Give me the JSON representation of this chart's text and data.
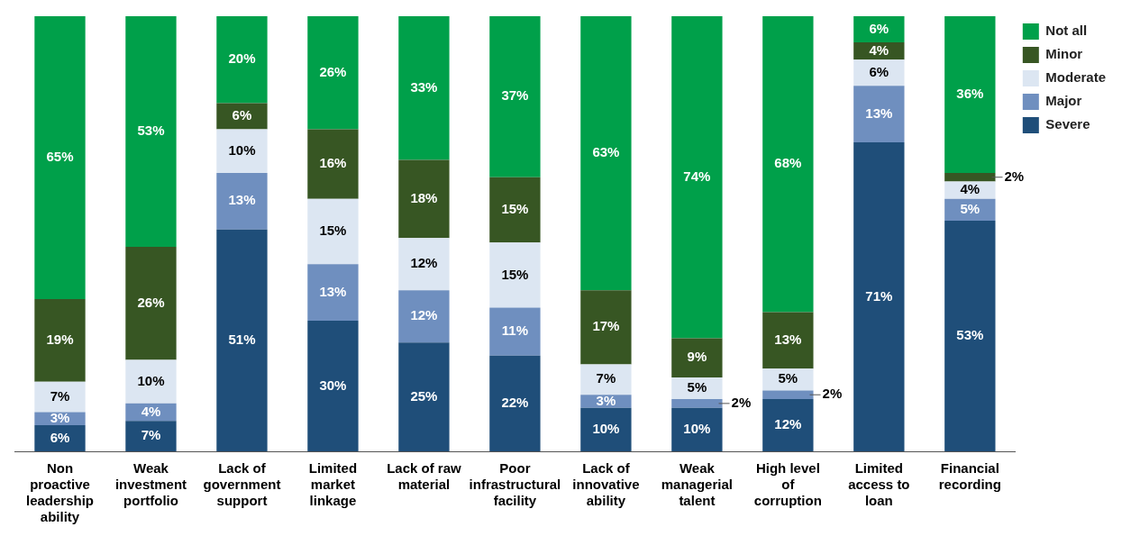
{
  "chart_data": {
    "type": "bar",
    "stacked": true,
    "legend": "top right",
    "grid": false,
    "categories": [
      "Non proactive leadership ability",
      "Weak investment portfolio",
      "Lack of government support",
      "Limited market linkage",
      "Lack of raw material",
      "Poor infrastructural facility",
      "Lack of innovative ability",
      "Weak managerial talent",
      "High level of corruption",
      "Limited access to loan",
      "Financial recording"
    ],
    "series": [
      {
        "name": "Severe",
        "color": "#1f4e79",
        "values": [
          6,
          7,
          51,
          30,
          25,
          22,
          10,
          10,
          12,
          71,
          53
        ],
        "value_labels": [
          "6%",
          "7%",
          "51%",
          "30%",
          "25%",
          "22%",
          "10%",
          "10%",
          "12%",
          "71%",
          "53%"
        ]
      },
      {
        "name": "Major",
        "color": "#6f8fbf",
        "values": [
          3,
          4,
          13,
          13,
          12,
          11,
          3,
          2,
          2,
          13,
          5
        ],
        "value_labels": [
          "3%",
          "4%",
          "13%",
          "13%",
          "12%",
          "11%",
          "3%",
          "2%",
          "2%",
          "13%",
          "5%"
        ]
      },
      {
        "name": "Moderate",
        "color": "#dce6f2",
        "values": [
          7,
          10,
          10,
          15,
          12,
          15,
          7,
          5,
          5,
          6,
          4
        ],
        "value_labels": [
          "7%",
          "10%",
          "10%",
          "15%",
          "12%",
          "15%",
          "7%",
          "5%",
          "5%",
          "6%",
          "4%"
        ]
      },
      {
        "name": "Minor",
        "color": "#375623",
        "values": [
          19,
          26,
          6,
          16,
          18,
          15,
          17,
          9,
          13,
          4,
          2
        ],
        "value_labels": [
          "19%",
          "26%",
          "6%",
          "16%",
          "18%",
          "15%",
          "17%",
          "9%",
          "13%",
          "4%",
          "2%"
        ]
      },
      {
        "name": "Not all",
        "color": "#00a04a",
        "values": [
          65,
          53,
          20,
          26,
          33,
          37,
          63,
          74,
          68,
          6,
          36
        ],
        "value_labels": [
          "65%",
          "53%",
          "20%",
          "26%",
          "33%",
          "37%",
          "63%",
          "74%",
          "68%",
          "6%",
          "36%"
        ]
      }
    ]
  }
}
